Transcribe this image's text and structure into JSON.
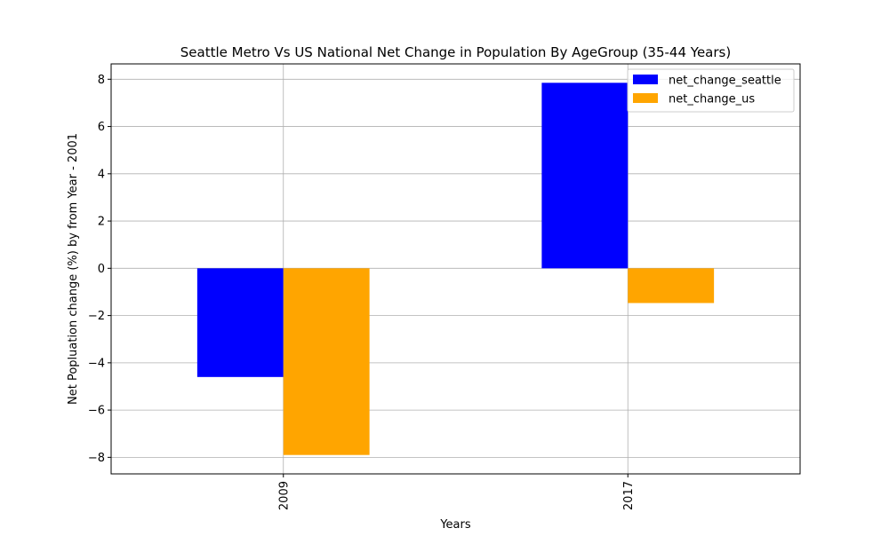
{
  "chart_data": {
    "type": "bar",
    "title": "Seattle Metro Vs US National Net Change in Population By AgeGroup (35-44 Years)",
    "xlabel": "Years",
    "ylabel": "Net Popluation change (%) by from Year - 2001",
    "categories": [
      "2009",
      "2017"
    ],
    "series": [
      {
        "name": "net_change_seattle",
        "color": "#0000ff",
        "values": [
          -4.6,
          7.85
        ]
      },
      {
        "name": "net_change_us",
        "color": "#ffa500",
        "values": [
          -7.9,
          -1.47
        ]
      }
    ],
    "ylim": [
      -8.7,
      8.65
    ],
    "yticks": [
      -8,
      -6,
      -4,
      -2,
      0,
      2,
      4,
      6,
      8
    ],
    "ytick_labels": [
      "−8",
      "−6",
      "−4",
      "−2",
      "0",
      "2",
      "4",
      "6",
      "8"
    ],
    "xtick_rotation_deg": 90,
    "grid": true,
    "legend_position": "upper right"
  }
}
